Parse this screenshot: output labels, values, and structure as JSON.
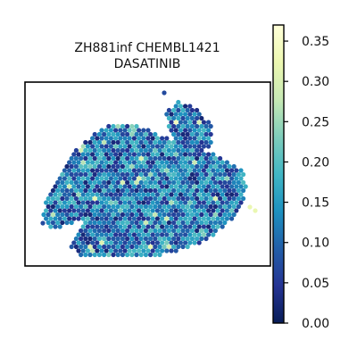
{
  "chart_data": {
    "type": "scatter",
    "title_lines": [
      "ZH881inf CHEMBL1421",
      "DASATINIB"
    ],
    "xlabel": "",
    "ylabel": "",
    "grid": false,
    "axes_ticks": false,
    "colormap": "YlGnBu_r",
    "colormap_stops": [
      "#081d58",
      "#253494",
      "#225ea8",
      "#1d91c0",
      "#41b6c4",
      "#7fcdbb",
      "#c7e9b4",
      "#edf8b1",
      "#ffffd9"
    ],
    "colorbar": {
      "range": [
        0.0,
        0.37
      ],
      "ticks": [
        0.0,
        0.05,
        0.1,
        0.15,
        0.2,
        0.25,
        0.3,
        0.35
      ],
      "tick_labels": [
        "0.00",
        "0.05",
        "0.10",
        "0.15",
        "0.20",
        "0.25",
        "0.30",
        "0.35"
      ]
    },
    "points_note": "spatial transcriptomics spot map; individual spot values shown by color"
  }
}
